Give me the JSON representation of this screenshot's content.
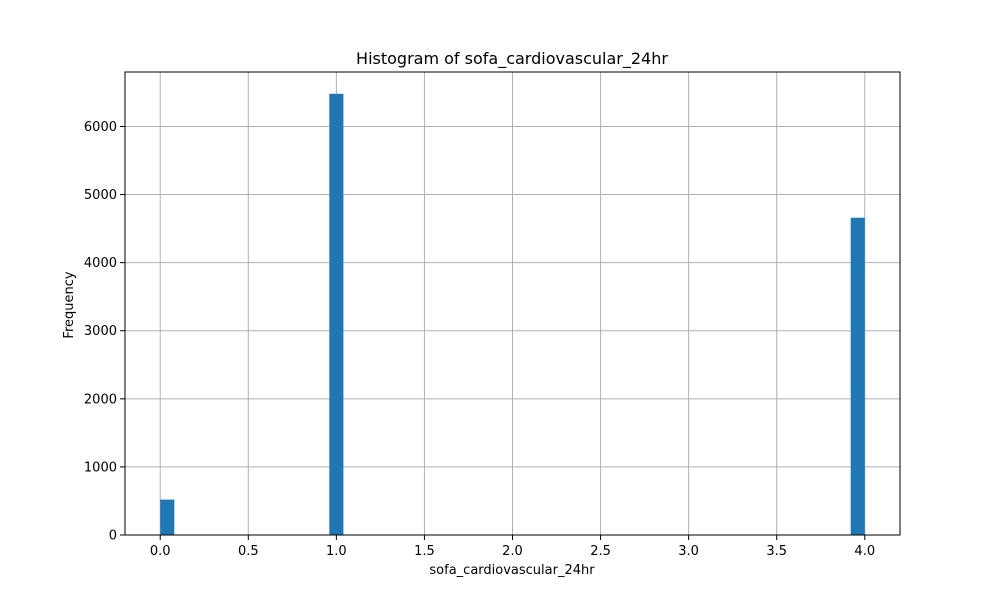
{
  "chart_data": {
    "type": "bar",
    "title": "Histogram of sofa_cardiovascular_24hr",
    "xlabel": "sofa_cardiovascular_24hr",
    "ylabel": "Frequency",
    "xlim": [
      -0.2,
      4.2
    ],
    "ylim": [
      0,
      6800
    ],
    "grid": true,
    "bar_color": "#1f77b4",
    "bin_width": 0.08,
    "bins": [
      {
        "x0": 0.0,
        "x1": 0.08,
        "value": 520
      },
      {
        "x0": 0.96,
        "x1": 1.04,
        "value": 6480
      },
      {
        "x0": 3.92,
        "x1": 4.0,
        "value": 4660
      }
    ],
    "xticks": [
      0.0,
      0.5,
      1.0,
      1.5,
      2.0,
      2.5,
      3.0,
      3.5,
      4.0
    ],
    "xtick_labels": [
      "0.0",
      "0.5",
      "1.0",
      "1.5",
      "2.0",
      "2.5",
      "3.0",
      "3.5",
      "4.0"
    ],
    "yticks": [
      0,
      1000,
      2000,
      3000,
      4000,
      5000,
      6000
    ],
    "ytick_labels": [
      "0",
      "1000",
      "2000",
      "3000",
      "4000",
      "5000",
      "6000"
    ]
  }
}
